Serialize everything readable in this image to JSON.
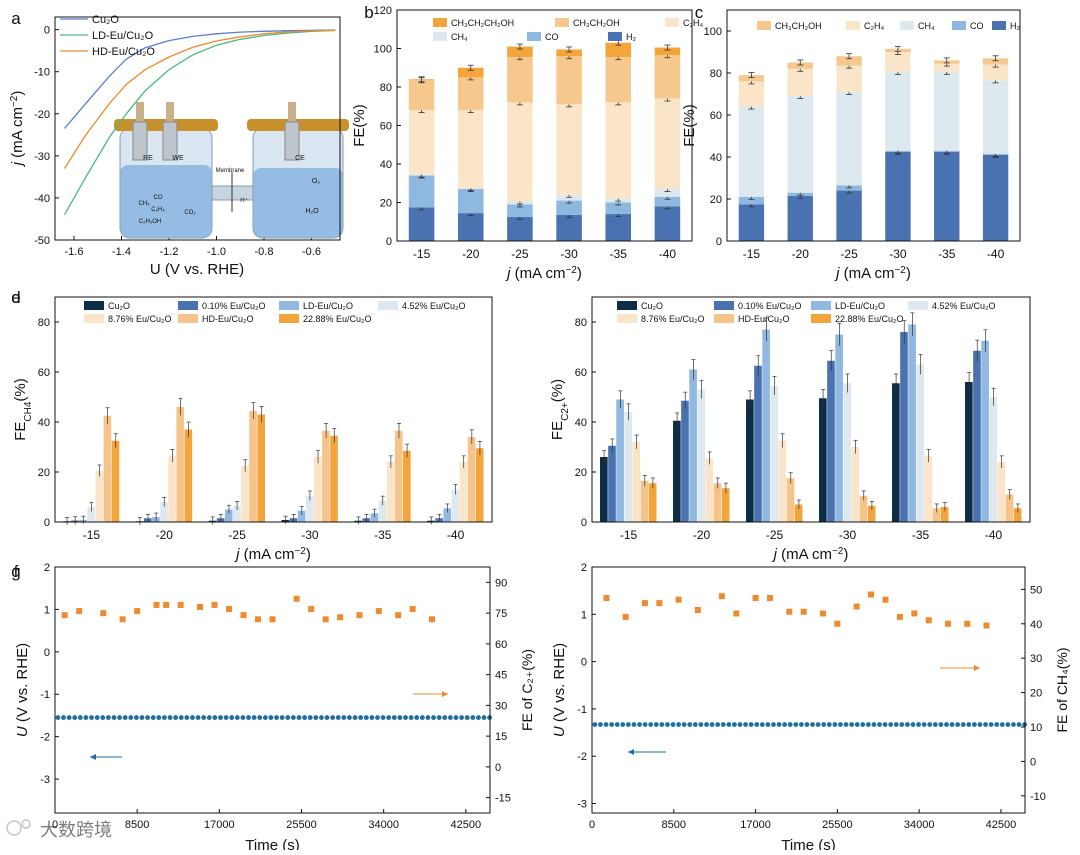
{
  "figure": {
    "watermark": "大数跨境",
    "colors": {
      "cu2o": "#0d2c45",
      "ld": "#90b8e0",
      "hd": "#f6c48a",
      "orange": "#f3a43a",
      "h2": "#4a72b0",
      "co": "#8eb8e0",
      "ch4": "#dde9ef",
      "c2h4": "#fae5c8",
      "ethanol": "#f7c88e",
      "propanol": "#f3a43a",
      "blue_line": "#5b7fd0",
      "green_line": "#4cb87a",
      "scatter_blue": "#1f6ea1",
      "scatter_orange": "#f18a2e"
    }
  },
  "chart_data": [
    {
      "panel": "a",
      "type": "line",
      "xlabel": "U (V vs. RHE)",
      "ylabel": "j (mA cm⁻²)",
      "xlim": [
        -1.68,
        -0.48
      ],
      "ylim": [
        -50,
        3
      ],
      "xticks": [
        "-1.6",
        "-1.4",
        "-1.2",
        "-1.0",
        "-0.8",
        "-0.6"
      ],
      "yticks": [
        "0",
        "-10",
        "-20",
        "-30",
        "-40",
        "-50"
      ],
      "legend": [
        "Cu₂O",
        "LD-Eu/Cu₂O",
        "HD-Eu/Cu₂O"
      ],
      "series": [
        {
          "name": "Cu₂O",
          "color": "#5b7fd0",
          "points": [
            [
              -1.64,
              -23.5
            ],
            [
              -1.55,
              -17.5
            ],
            [
              -1.45,
              -11
            ],
            [
              -1.38,
              -7
            ],
            [
              -1.3,
              -4.3
            ],
            [
              -1.2,
              -2.6
            ],
            [
              -1.1,
              -1.6
            ],
            [
              -1.0,
              -1.0
            ],
            [
              -0.9,
              -0.6
            ],
            [
              -0.8,
              -0.4
            ],
            [
              -0.7,
              -0.25
            ],
            [
              -0.5,
              -0.1
            ]
          ]
        },
        {
          "name": "LD-Eu/Cu₂O",
          "color": "#4cb87a",
          "points": [
            [
              -1.64,
              -44
            ],
            [
              -1.55,
              -35
            ],
            [
              -1.45,
              -25.5
            ],
            [
              -1.38,
              -20
            ],
            [
              -1.3,
              -14.5
            ],
            [
              -1.2,
              -9.5
            ],
            [
              -1.1,
              -6
            ],
            [
              -1.0,
              -3.7
            ],
            [
              -0.9,
              -2.3
            ],
            [
              -0.8,
              -1.4
            ],
            [
              -0.7,
              -0.8
            ],
            [
              -0.6,
              -0.4
            ],
            [
              -0.5,
              -0.2
            ]
          ]
        },
        {
          "name": "HD-Eu/Cu₂O",
          "color": "#f18a2e",
          "points": [
            [
              -1.64,
              -33
            ],
            [
              -1.55,
              -25
            ],
            [
              -1.45,
              -17.5
            ],
            [
              -1.38,
              -13
            ],
            [
              -1.3,
              -9.5
            ],
            [
              -1.2,
              -6.5
            ],
            [
              -1.1,
              -4.2
            ],
            [
              -1.0,
              -2.7
            ],
            [
              -0.9,
              -1.7
            ],
            [
              -0.8,
              -1.0
            ],
            [
              -0.7,
              -0.55
            ],
            [
              -0.6,
              -0.3
            ],
            [
              -0.5,
              -0.15
            ]
          ]
        }
      ],
      "inset": {
        "electrodes": [
          "RE",
          "WE",
          "CE"
        ],
        "membrane": "Membrane",
        "ions": [
          "H⁺",
          "O₂",
          "H₂O"
        ],
        "products": [
          "CH₄",
          "CO",
          "C₂H₄",
          "CO₂",
          "C₂H₅OH"
        ]
      }
    },
    {
      "panel": "b",
      "type": "stacked-bar",
      "xlabel": "j (mA cm⁻²)",
      "ylabel": "FE(%)",
      "ylim": [
        0,
        120
      ],
      "yticks": [
        "0",
        "20",
        "40",
        "60",
        "80",
        "100",
        "120"
      ],
      "categories": [
        "-15",
        "-20",
        "-25",
        "-30",
        "-35",
        "-40"
      ],
      "legend": [
        "CH₃CH₂CH₂OH",
        "CH₃CH₂OH",
        "C₂H₄",
        "CH₄",
        "CO",
        "H₂"
      ],
      "series": [
        {
          "name": "H₂",
          "color": "#4a72b0",
          "values": [
            17.5,
            14.5,
            12.5,
            13.5,
            14,
            18
          ]
        },
        {
          "name": "CO",
          "color": "#8eb8e0",
          "values": [
            16.5,
            12.5,
            6.5,
            7.5,
            6,
            5
          ]
        },
        {
          "name": "CH₄",
          "color": "#dde9ef",
          "values": [
            0.5,
            0.5,
            1.5,
            3,
            2,
            4
          ]
        },
        {
          "name": "C₂H₄",
          "color": "#fae5c8",
          "values": [
            33.5,
            40.5,
            51.5,
            47,
            50,
            47
          ]
        },
        {
          "name": "CH₃CH₂OH",
          "color": "#f7c88e",
          "values": [
            15.5,
            17,
            23.5,
            25,
            23.5,
            22.5
          ]
        },
        {
          "name": "CH₃CH₂CH₂OH",
          "color": "#f3a43a",
          "values": [
            0.5,
            5,
            5.5,
            3.5,
            7.5,
            4
          ]
        }
      ]
    },
    {
      "panel": "c",
      "type": "stacked-bar",
      "xlabel": "j (mA cm⁻²)",
      "ylabel": "FE(%)",
      "ylim": [
        0,
        110
      ],
      "yticks": [
        "0",
        "20",
        "40",
        "60",
        "80",
        "100"
      ],
      "categories": [
        "-15",
        "-20",
        "-25",
        "-30",
        "-35",
        "-40"
      ],
      "legend": [
        "CH₃CH₂OH",
        "C₂H₄",
        "CH₄",
        "CO",
        "H₂"
      ],
      "series": [
        {
          "name": "H₂",
          "color": "#4a72b0",
          "values": [
            17.5,
            21.5,
            24,
            42.5,
            42.5,
            41
          ]
        },
        {
          "name": "CO",
          "color": "#8eb8e0",
          "values": [
            3.5,
            1.5,
            2.5,
            0.5,
            0.5,
            0.5
          ]
        },
        {
          "name": "CH₄",
          "color": "#dde9ef",
          "values": [
            43,
            46,
            44.5,
            37.5,
            37.5,
            35
          ]
        },
        {
          "name": "C₂H₄",
          "color": "#fae5c8",
          "values": [
            12,
            13,
            12.5,
            9.5,
            4,
            7.5
          ]
        },
        {
          "name": "CH₃CH₂OH",
          "color": "#f7c88e",
          "values": [
            3,
            3,
            4.5,
            1.5,
            1.5,
            3
          ]
        }
      ]
    },
    {
      "panel": "d",
      "type": "grouped-bar",
      "xlabel": "j (mA cm⁻²)",
      "ylabel": "FE_CH4(%)",
      "ylim": [
        0,
        90
      ],
      "yticks": [
        "0",
        "20",
        "40",
        "60",
        "80"
      ],
      "categories": [
        "-15",
        "-20",
        "-25",
        "-30",
        "-35",
        "-40"
      ],
      "legend": [
        "Cu₂O",
        "0.10% Eu/Cu₂O",
        "LD-Eu/Cu₂O",
        "4.52% Eu/Cu₂O",
        "8.76% Eu/Cu₂O",
        "HD-Eu/Cu₂O",
        "22.88% Eu/Cu₂O"
      ],
      "series": [
        {
          "name": "Cu₂O",
          "color": "#0d2c45",
          "values": [
            0.3,
            0.3,
            0.5,
            0.8,
            0.5,
            0.5
          ]
        },
        {
          "name": "0.10% Eu/Cu₂O",
          "color": "#4a72b0",
          "values": [
            0.6,
            1.5,
            1.5,
            1.5,
            1.5,
            1.5
          ]
        },
        {
          "name": "LD-Eu/Cu₂O",
          "color": "#90b8e0",
          "values": [
            0.8,
            2,
            5,
            4.5,
            3.5,
            5.5
          ]
        },
        {
          "name": "4.52% Eu/Cu₂O",
          "color": "#dde9ef",
          "values": [
            6,
            8,
            6.5,
            10.5,
            8.5,
            13
          ]
        },
        {
          "name": "8.76% Eu/Cu₂O",
          "color": "#fae5c8",
          "values": [
            20.5,
            26.5,
            22.5,
            26,
            24,
            24
          ]
        },
        {
          "name": "HD-Eu/Cu₂O",
          "color": "#f6c48a",
          "values": [
            42.5,
            46,
            44.5,
            36.5,
            36.5,
            34
          ]
        },
        {
          "name": "22.88% Eu/Cu₂O",
          "color": "#f3a43a",
          "values": [
            32.5,
            37,
            43,
            34.5,
            28.5,
            29.5
          ]
        }
      ]
    },
    {
      "panel": "e",
      "type": "grouped-bar",
      "xlabel": "j (mA cm⁻²)",
      "ylabel": "FE_C2+(%)",
      "ylim": [
        0,
        90
      ],
      "yticks": [
        "0",
        "20",
        "40",
        "60",
        "80"
      ],
      "categories": [
        "-15",
        "-20",
        "-25",
        "-30",
        "-35",
        "-40"
      ],
      "legend": [
        "Cu₂O",
        "0.10% Eu/Cu₂O",
        "LD-Eu/Cu₂O",
        "4.52% Eu/Cu₂O",
        "8.76% Eu/Cu₂O",
        "HD-Eu/Cu₂O",
        "22.88% Eu/Cu₂O"
      ],
      "series": [
        {
          "name": "Cu₂O",
          "color": "#0d2c45",
          "values": [
            26,
            40.5,
            49,
            49.5,
            55.5,
            56
          ]
        },
        {
          "name": "0.10% Eu/Cu₂O",
          "color": "#4a72b0",
          "values": [
            30.5,
            48.5,
            62.5,
            64.5,
            76,
            68.5
          ]
        },
        {
          "name": "LD-Eu/Cu₂O",
          "color": "#90b8e0",
          "values": [
            49,
            61,
            77,
            75,
            79,
            72.5
          ]
        },
        {
          "name": "4.52% Eu/Cu₂O",
          "color": "#dde9ef",
          "values": [
            44,
            53,
            54.5,
            55.5,
            63,
            50
          ]
        },
        {
          "name": "8.76% Eu/Cu₂O",
          "color": "#fae5c8",
          "values": [
            32,
            25.5,
            32.5,
            30,
            26.5,
            24
          ]
        },
        {
          "name": "HD-Eu/Cu₂O",
          "color": "#f6c48a",
          "values": [
            16.5,
            15.5,
            17.5,
            10.5,
            5.5,
            11
          ]
        },
        {
          "name": "22.88% Eu/Cu₂O",
          "color": "#f3a43a",
          "values": [
            15.5,
            13.5,
            7,
            6.5,
            6,
            5.5
          ]
        }
      ]
    },
    {
      "panel": "f",
      "type": "scatter",
      "xlabel": "Time (s)",
      "ylabel": "U (V vs. RHE)",
      "y2label": "FE of C₂₊(%)",
      "xlim": [
        0,
        45000
      ],
      "ylim": [
        -3.8,
        2
      ],
      "xticks": [
        "0",
        "8500",
        "17000",
        "25500",
        "34000",
        "42500"
      ],
      "yticks": [
        "2",
        "1",
        "0",
        "-1",
        "-2",
        "-3"
      ],
      "y2ticks": [
        "90",
        "75",
        "60",
        "45",
        "30",
        "15",
        "0",
        "-15"
      ],
      "voltage_value": -1.55,
      "fe_x": [
        1000,
        2500,
        5000,
        7000,
        8500,
        10500,
        11500,
        13000,
        15000,
        16500,
        18000,
        19500,
        21000,
        22500,
        25000,
        26500,
        28000,
        29500,
        31500,
        33500,
        35500,
        37000,
        39000
      ],
      "fe_y": [
        74,
        76,
        75,
        72,
        76,
        79,
        79,
        79,
        78,
        79,
        77,
        74,
        72,
        72,
        82,
        77,
        72,
        73,
        74,
        76,
        74,
        77,
        72
      ]
    },
    {
      "panel": "g",
      "type": "scatter",
      "xlabel": "Time (s)",
      "ylabel": "U (V vs. RHE)",
      "y2label": "FE of CH₄(%)",
      "xlim": [
        0,
        45000
      ],
      "ylim": [
        -3.2,
        2
      ],
      "xticks": [
        "0",
        "8500",
        "17000",
        "25500",
        "34000",
        "42500"
      ],
      "yticks": [
        "2",
        "1",
        "0",
        "-1",
        "-2",
        "-3"
      ],
      "y2ticks": [
        "50",
        "40",
        "30",
        "20",
        "10",
        "0",
        "-10"
      ],
      "voltage_value": -1.33,
      "fe_x": [
        1500,
        3500,
        5500,
        7000,
        9000,
        11000,
        13500,
        15000,
        17000,
        18500,
        20500,
        22000,
        24000,
        25500,
        27500,
        29000,
        30500,
        32000,
        33500,
        35000,
        37000,
        39000,
        41000
      ],
      "fe_y": [
        47.5,
        42,
        46,
        46,
        47,
        44,
        48,
        43,
        47.5,
        47.5,
        43.5,
        43.5,
        43,
        40,
        45,
        48.5,
        47,
        42,
        43,
        41,
        40,
        40,
        39.5
      ]
    }
  ]
}
